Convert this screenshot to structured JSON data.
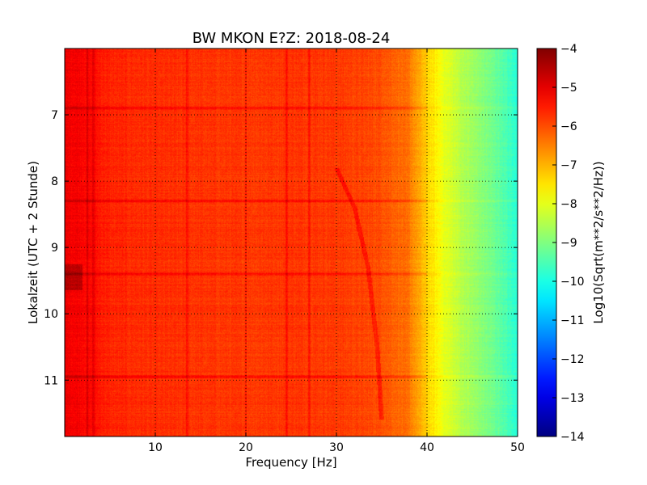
{
  "chart_data": {
    "type": "heatmap",
    "title": "BW MKON E?Z: 2018-08-24",
    "xlabel": "Frequency [Hz]",
    "ylabel": "Lokalzeit (UTC + 2 Stunde)",
    "xlim": [
      0,
      50
    ],
    "ylim": [
      6.0,
      11.85
    ],
    "y_inverted": true,
    "xticks": [
      10,
      20,
      30,
      40,
      50
    ],
    "xtick_labels": [
      "10",
      "20",
      "30",
      "40",
      "50"
    ],
    "yticks": [
      7,
      8,
      9,
      10,
      11
    ],
    "ytick_labels": [
      "7",
      "8",
      "9",
      "10",
      "11"
    ],
    "grid": true,
    "colormap": "jet",
    "colorbar": {
      "label": "Log10(Sqrt(m**2/s**2/Hz))",
      "min": -14,
      "max": -4,
      "ticks": [
        -4,
        -5,
        -6,
        -7,
        -8,
        -9,
        -10,
        -11,
        -12,
        -13,
        -14
      ],
      "tick_labels": [
        "−4",
        "−5",
        "−6",
        "−7",
        "−8",
        "−9",
        "−10",
        "−11",
        "−12",
        "−13",
        "−14"
      ]
    },
    "spectrum_profile": {
      "frequency_hz": [
        0,
        2,
        5,
        10,
        15,
        20,
        25,
        30,
        35,
        38,
        40,
        42,
        44,
        46,
        48,
        50
      ],
      "log10_amplitude": [
        -5.1,
        -5.2,
        -5.6,
        -5.7,
        -5.75,
        -5.8,
        -5.75,
        -5.8,
        -6.0,
        -6.4,
        -7.3,
        -8.0,
        -8.5,
        -8.9,
        -9.3,
        -9.9
      ]
    },
    "strong_horizontal_bands_hour": [
      6.9,
      8.3,
      9.4,
      10.95
    ],
    "strong_vertical_lines_hz": [
      2.5,
      3.2,
      13.5,
      20,
      24.5,
      27
    ],
    "diagonal_trace": {
      "frequency_hz": [
        30.0,
        32.0,
        33.5,
        34.5,
        35.0
      ],
      "hour": [
        7.8,
        8.4,
        9.3,
        10.5,
        11.6
      ]
    }
  }
}
